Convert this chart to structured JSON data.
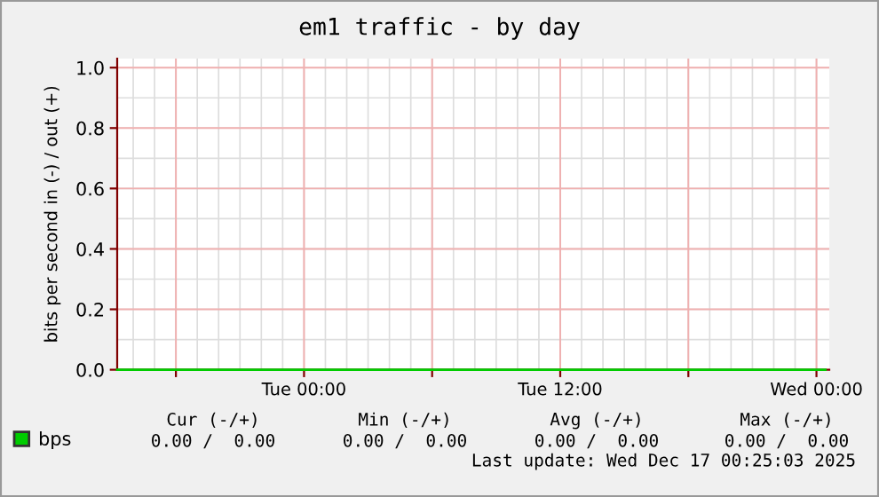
{
  "chart_data": {
    "type": "line",
    "title": "em1 traffic - by day",
    "ylabel": "bits per second in (-) / out (+)",
    "xlim": [
      "2025-12-15T15:15",
      "2025-12-17T00:36"
    ],
    "xticks": [
      {
        "value": "2025-12-15T18:00",
        "label": null
      },
      {
        "value": "2025-12-16T00:00",
        "label": "Tue 00:00"
      },
      {
        "value": "2025-12-16T06:00",
        "label": null
      },
      {
        "value": "2025-12-16T12:00",
        "label": "Tue 12:00"
      },
      {
        "value": "2025-12-16T18:00",
        "label": null
      },
      {
        "value": "2025-12-17T00:00",
        "label": "Wed 00:00"
      }
    ],
    "ylim": [
      0,
      1.03
    ],
    "yticks": [
      {
        "value": 0,
        "label": "0.0"
      },
      {
        "value": 0.2,
        "label": "0.2"
      },
      {
        "value": 0.4,
        "label": "0.4"
      },
      {
        "value": 0.6,
        "label": "0.6"
      },
      {
        "value": 0.8,
        "label": "0.8"
      },
      {
        "value": 1.0,
        "label": "1.0"
      }
    ],
    "grid": true,
    "legend": "bottom",
    "marker": "none",
    "line_style": "solid",
    "series": [
      {
        "name": "bps",
        "color": "#00cc00",
        "x": [
          "2025-12-15T15:15",
          "2025-12-17T00:25"
        ],
        "values": [
          0,
          0
        ]
      }
    ],
    "annotations": [
      "Cur (-/+)",
      "Min (-/+)",
      "Avg (-/+)",
      "Max (-/+)",
      "0.00 /  0.00",
      "0.00 /  0.00",
      "0.00 /  0.00",
      "0.00 /  0.00",
      "Last update: Wed Dec 17 00:25:03 2025"
    ]
  }
}
